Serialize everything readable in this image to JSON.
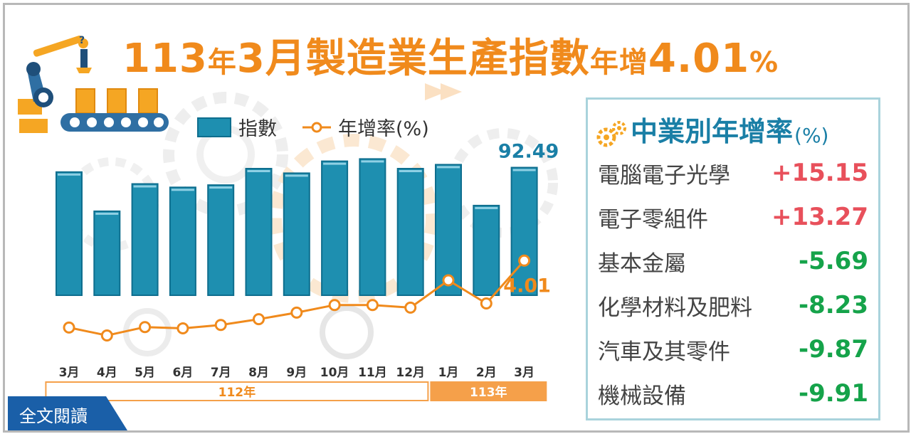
{
  "title": {
    "part1": "113",
    "part2": "年",
    "part3": "3",
    "part4": "月製造業生產指數",
    "part5": "年增",
    "part6": "4.01",
    "part7": "%"
  },
  "legend": {
    "bar_label": "指數",
    "line_label": "年增率(%)"
  },
  "colors": {
    "bar": "#1e8fb0",
    "bar_stroke": "#0e6e8e",
    "line": "#f08a1c",
    "title": "#f08a1c",
    "panel_title": "#1a7fa6",
    "positive": "#e8505b",
    "negative": "#15a34a",
    "readmore_bg": "#1a5fa8"
  },
  "chart_data": {
    "type": "bar",
    "categories": [
      "3月",
      "4月",
      "5月",
      "6月",
      "7月",
      "8月",
      "9月",
      "10月",
      "11月",
      "12月",
      "1月",
      "2月",
      "3月"
    ],
    "year_groups": [
      {
        "label": "112年",
        "count": 10
      },
      {
        "label": "113年",
        "count": 3
      }
    ],
    "series": [
      {
        "name": "指數",
        "type": "bar",
        "values": [
          91.7,
          84.8,
          89.6,
          89.0,
          89.4,
          92.3,
          91.5,
          93.6,
          94.0,
          92.3,
          93.0,
          85.8,
          92.49
        ]
      },
      {
        "name": "年增率(%)",
        "type": "line",
        "values": [
          -21.5,
          -24.5,
          -21.3,
          -21.8,
          -20.5,
          -18.3,
          -15.8,
          -12.9,
          -12.9,
          -13.9,
          -3.5,
          -12.3,
          4.01
        ]
      }
    ],
    "labels": {
      "last_index": "92.49",
      "last_growth": "4.01"
    }
  },
  "panel": {
    "title_main": "中業別年增率",
    "title_unit": "(%)",
    "icon": "gears-icon",
    "rows": [
      {
        "name": "電腦電子光學",
        "value": "+15.15",
        "sign": "positive"
      },
      {
        "name": "電子零組件",
        "value": "+13.27",
        "sign": "positive"
      },
      {
        "name": "基本金屬",
        "value": "-5.69",
        "sign": "negative"
      },
      {
        "name": "化學材料及肥料",
        "value": "-8.23",
        "sign": "negative"
      },
      {
        "name": "汽車及其零件",
        "value": "-9.87",
        "sign": "negative"
      },
      {
        "name": "機械設備",
        "value": "-9.91",
        "sign": "negative"
      }
    ]
  },
  "readmore": {
    "label": "全文閱讀"
  }
}
